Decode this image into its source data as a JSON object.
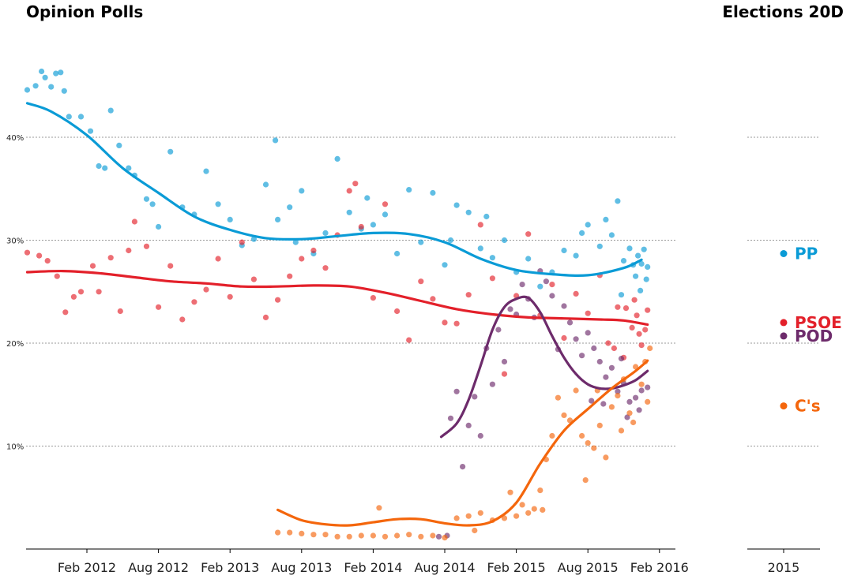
{
  "chart_data": {
    "type": "scatter",
    "title_left": "Opinion Polls",
    "title_right": "Elections 20D",
    "x_ticks": [
      "Feb 2012",
      "Aug 2012",
      "Feb 2013",
      "Aug 2013",
      "Feb 2014",
      "Aug 2014",
      "Feb 2015",
      "Aug 2015",
      "Feb 2016"
    ],
    "y_ticks": [
      "10%",
      "20%",
      "30%",
      "40%"
    ],
    "y_tick_values": [
      10,
      20,
      30,
      40
    ],
    "ylim": [
      0,
      48
    ],
    "xlim_months": [
      -7,
      48
    ],
    "grid": "horizontal dotted",
    "right_panel_tick": "2015",
    "series": [
      {
        "name": "PP",
        "color": "#0a9bd6",
        "election_result": 28.7,
        "trend": [
          [
            -5,
            43.3
          ],
          [
            -3,
            42.5
          ],
          [
            0,
            40.2
          ],
          [
            3,
            37
          ],
          [
            6,
            34.6
          ],
          [
            9,
            32.3
          ],
          [
            12,
            31
          ],
          [
            15,
            30.2
          ],
          [
            18,
            30.1
          ],
          [
            21,
            30.4
          ],
          [
            24,
            30.7
          ],
          [
            27,
            30.6
          ],
          [
            30,
            29.8
          ],
          [
            33,
            28.2
          ],
          [
            36,
            27.1
          ],
          [
            39,
            26.7
          ],
          [
            42,
            26.6
          ],
          [
            45,
            27.3
          ],
          [
            46.5,
            28.1
          ]
        ],
        "polls": [
          [
            -5,
            44.6
          ],
          [
            -4.3,
            45
          ],
          [
            -3.8,
            46.4
          ],
          [
            -3.5,
            45.8
          ],
          [
            -3,
            44.9
          ],
          [
            -2.6,
            46.2
          ],
          [
            -2.2,
            46.3
          ],
          [
            -1.9,
            44.5
          ],
          [
            -1.5,
            42
          ],
          [
            -0.5,
            42
          ],
          [
            0.3,
            40.6
          ],
          [
            1,
            37.2
          ],
          [
            1.5,
            37
          ],
          [
            2,
            42.6
          ],
          [
            2.7,
            39.2
          ],
          [
            3.5,
            37
          ],
          [
            4,
            36.3
          ],
          [
            5,
            34
          ],
          [
            5.5,
            33.5
          ],
          [
            6,
            31.3
          ],
          [
            7,
            38.6
          ],
          [
            8,
            33.2
          ],
          [
            9,
            32.5
          ],
          [
            10,
            36.7
          ],
          [
            11,
            33.5
          ],
          [
            12,
            32
          ],
          [
            13,
            29.5
          ],
          [
            14,
            30.1
          ],
          [
            15,
            35.4
          ],
          [
            15.8,
            39.7
          ],
          [
            16,
            32
          ],
          [
            17,
            33.2
          ],
          [
            17.5,
            29.8
          ],
          [
            18,
            34.8
          ],
          [
            19,
            28.7
          ],
          [
            20,
            30.7
          ],
          [
            21,
            37.9
          ],
          [
            22,
            32.7
          ],
          [
            23,
            31.1
          ],
          [
            23.5,
            34.1
          ],
          [
            24,
            31.5
          ],
          [
            25,
            32.5
          ],
          [
            26,
            28.7
          ],
          [
            27,
            34.9
          ],
          [
            28,
            29.8
          ],
          [
            29,
            34.6
          ],
          [
            30,
            27.6
          ],
          [
            30.5,
            30
          ],
          [
            31,
            33.4
          ],
          [
            32,
            32.7
          ],
          [
            33,
            29.2
          ],
          [
            33.5,
            32.3
          ],
          [
            34,
            28.3
          ],
          [
            35,
            30
          ],
          [
            36,
            26.9
          ],
          [
            37,
            28.2
          ],
          [
            38,
            25.5
          ],
          [
            39,
            26.9
          ],
          [
            40,
            29
          ],
          [
            41,
            28.5
          ],
          [
            41.5,
            30.7
          ],
          [
            42,
            31.5
          ],
          [
            43,
            29.4
          ],
          [
            43.5,
            32
          ],
          [
            44,
            30.5
          ],
          [
            44.5,
            33.8
          ],
          [
            45,
            28
          ],
          [
            45.5,
            29.2
          ],
          [
            46,
            26.5
          ],
          [
            46.2,
            28.5
          ],
          [
            46.5,
            27.7
          ],
          [
            46.7,
            29.1
          ],
          [
            46.9,
            26.2
          ],
          [
            47,
            27.4
          ],
          [
            45.8,
            27.6
          ],
          [
            46.4,
            25.1
          ],
          [
            44.8,
            24.7
          ]
        ]
      },
      {
        "name": "PSOE",
        "color": "#e3202a",
        "election_result": 22.0,
        "trend": [
          [
            -5,
            26.9
          ],
          [
            -2,
            27
          ],
          [
            1,
            26.8
          ],
          [
            4,
            26.4
          ],
          [
            7,
            26
          ],
          [
            10,
            25.8
          ],
          [
            13,
            25.5
          ],
          [
            16,
            25.5
          ],
          [
            19,
            25.6
          ],
          [
            22,
            25.5
          ],
          [
            25,
            24.9
          ],
          [
            28,
            24.1
          ],
          [
            31,
            23.3
          ],
          [
            34,
            22.8
          ],
          [
            37,
            22.5
          ],
          [
            40,
            22.4
          ],
          [
            43,
            22.3
          ],
          [
            45,
            22.2
          ],
          [
            47,
            21.8
          ]
        ],
        "polls": [
          [
            -5,
            28.8
          ],
          [
            -4,
            28.5
          ],
          [
            -3.3,
            28
          ],
          [
            -2.5,
            26.5
          ],
          [
            -1.8,
            23
          ],
          [
            -1.1,
            24.5
          ],
          [
            -0.5,
            25
          ],
          [
            0.5,
            27.5
          ],
          [
            1,
            25
          ],
          [
            2,
            28.3
          ],
          [
            2.8,
            23.1
          ],
          [
            3.5,
            29
          ],
          [
            4,
            31.8
          ],
          [
            5,
            29.4
          ],
          [
            6,
            23.5
          ],
          [
            7,
            27.5
          ],
          [
            8,
            22.3
          ],
          [
            9,
            24
          ],
          [
            10,
            25.2
          ],
          [
            11,
            28.2
          ],
          [
            12,
            24.5
          ],
          [
            13,
            29.8
          ],
          [
            14,
            26.2
          ],
          [
            15,
            22.5
          ],
          [
            16,
            24.2
          ],
          [
            17,
            26.5
          ],
          [
            18,
            28.2
          ],
          [
            19,
            29
          ],
          [
            20,
            27.3
          ],
          [
            21,
            30.5
          ],
          [
            22,
            34.8
          ],
          [
            22.5,
            35.5
          ],
          [
            23,
            31.3
          ],
          [
            24,
            24.4
          ],
          [
            25,
            33.5
          ],
          [
            26,
            23.1
          ],
          [
            27,
            20.3
          ],
          [
            28,
            26
          ],
          [
            29,
            24.3
          ],
          [
            30,
            22
          ],
          [
            31,
            21.9
          ],
          [
            32,
            24.7
          ],
          [
            33,
            31.5
          ],
          [
            34,
            26.3
          ],
          [
            35,
            17
          ],
          [
            36,
            24.6
          ],
          [
            37,
            30.6
          ],
          [
            38,
            22.7
          ],
          [
            39,
            25.7
          ],
          [
            40,
            20.5
          ],
          [
            41,
            24.8
          ],
          [
            42,
            22.9
          ],
          [
            43,
            26.6
          ],
          [
            43.7,
            20
          ],
          [
            44.5,
            23.5
          ],
          [
            45.2,
            23.4
          ],
          [
            45.7,
            21.5
          ],
          [
            46.1,
            22.7
          ],
          [
            46.5,
            19.8
          ],
          [
            46.8,
            21.3
          ],
          [
            47,
            23.2
          ],
          [
            46.3,
            20.9
          ],
          [
            45.9,
            24.2
          ],
          [
            44.2,
            19.5
          ],
          [
            45,
            18.6
          ]
        ]
      },
      {
        "name": "POD",
        "color": "#6d2b6b",
        "election_result": 20.7,
        "trend": [
          [
            29.7,
            10.9
          ],
          [
            31,
            12.2
          ],
          [
            32,
            14.5
          ],
          [
            33,
            17.8
          ],
          [
            34,
            21.3
          ],
          [
            35,
            23.5
          ],
          [
            36,
            24.3
          ],
          [
            37,
            24.4
          ],
          [
            38,
            23
          ],
          [
            39,
            20.7
          ],
          [
            40,
            18.6
          ],
          [
            41,
            17
          ],
          [
            42,
            16
          ],
          [
            43,
            15.6
          ],
          [
            44,
            15.6
          ],
          [
            45,
            15.9
          ],
          [
            46,
            16.4
          ],
          [
            47,
            17.3
          ]
        ],
        "polls": [
          [
            30.5,
            12.7
          ],
          [
            31,
            15.3
          ],
          [
            31.5,
            8
          ],
          [
            32,
            12
          ],
          [
            32.5,
            14.8
          ],
          [
            33,
            11
          ],
          [
            33.5,
            19.5
          ],
          [
            34,
            16
          ],
          [
            34.5,
            21.3
          ],
          [
            35,
            18.2
          ],
          [
            35.5,
            23.3
          ],
          [
            36,
            22.8
          ],
          [
            36.5,
            25.7
          ],
          [
            37,
            24.3
          ],
          [
            37.5,
            22.5
          ],
          [
            38,
            27
          ],
          [
            38.5,
            26
          ],
          [
            39,
            24.6
          ],
          [
            39.5,
            19.4
          ],
          [
            40,
            23.6
          ],
          [
            40.5,
            22
          ],
          [
            41,
            20.4
          ],
          [
            41.5,
            18.8
          ],
          [
            42,
            21
          ],
          [
            42.5,
            19.5
          ],
          [
            43,
            18.2
          ],
          [
            43.5,
            16.7
          ],
          [
            44,
            17.6
          ],
          [
            44.5,
            15.3
          ],
          [
            45,
            16.1
          ],
          [
            45.5,
            14.3
          ],
          [
            46,
            14.7
          ],
          [
            46.5,
            15.4
          ],
          [
            47,
            15.7
          ],
          [
            45.3,
            12.8
          ],
          [
            46.3,
            13.5
          ],
          [
            44.8,
            18.5
          ],
          [
            43.3,
            14.1
          ],
          [
            42.3,
            14.4
          ],
          [
            29.5,
            1.2
          ],
          [
            30.2,
            1.3
          ]
        ]
      },
      {
        "name": "C's",
        "color": "#f4660c",
        "election_result": 13.9,
        "trend": [
          [
            16,
            3.8
          ],
          [
            18,
            2.8
          ],
          [
            20,
            2.4
          ],
          [
            22,
            2.3
          ],
          [
            24,
            2.6
          ],
          [
            26,
            2.9
          ],
          [
            28,
            2.9
          ],
          [
            30,
            2.5
          ],
          [
            32,
            2.3
          ],
          [
            34,
            2.7
          ],
          [
            36,
            4.5
          ],
          [
            38,
            8.3
          ],
          [
            40,
            11.5
          ],
          [
            42,
            13.6
          ],
          [
            44,
            15.6
          ],
          [
            46,
            17.3
          ],
          [
            47,
            18.3
          ]
        ],
        "polls": [
          [
            16,
            1.6
          ],
          [
            17,
            1.6
          ],
          [
            18,
            1.5
          ],
          [
            19,
            1.4
          ],
          [
            20,
            1.4
          ],
          [
            21,
            1.2
          ],
          [
            22,
            1.2
          ],
          [
            23,
            1.3
          ],
          [
            24,
            1.3
          ],
          [
            25,
            1.2
          ],
          [
            26,
            1.3
          ],
          [
            27,
            1.4
          ],
          [
            28,
            1.2
          ],
          [
            29,
            1.3
          ],
          [
            30,
            1.1
          ],
          [
            31,
            3
          ],
          [
            32,
            3.2
          ],
          [
            32.5,
            1.8
          ],
          [
            33,
            3.5
          ],
          [
            34,
            2.8
          ],
          [
            35,
            3
          ],
          [
            35.5,
            5.5
          ],
          [
            36,
            3.2
          ],
          [
            36.5,
            4.3
          ],
          [
            37,
            3.5
          ],
          [
            37.5,
            3.9
          ],
          [
            38,
            5.7
          ],
          [
            38.5,
            8.7
          ],
          [
            39,
            11
          ],
          [
            39.5,
            14.7
          ],
          [
            40,
            13
          ],
          [
            40.5,
            12.5
          ],
          [
            41,
            15.4
          ],
          [
            41.5,
            11
          ],
          [
            42,
            10.3
          ],
          [
            42.5,
            9.8
          ],
          [
            43,
            12
          ],
          [
            43.5,
            8.9
          ],
          [
            44,
            13.8
          ],
          [
            44.5,
            14.9
          ],
          [
            45,
            16.5
          ],
          [
            45.5,
            13.2
          ],
          [
            46,
            17.7
          ],
          [
            46.5,
            16
          ],
          [
            47,
            14.3
          ],
          [
            47.2,
            19.5
          ],
          [
            46.8,
            18.2
          ],
          [
            44.8,
            11.5
          ],
          [
            45.8,
            12.3
          ],
          [
            42.8,
            15.4
          ],
          [
            41.8,
            6.7
          ],
          [
            38.2,
            3.8
          ],
          [
            24.5,
            4
          ]
        ]
      }
    ]
  }
}
